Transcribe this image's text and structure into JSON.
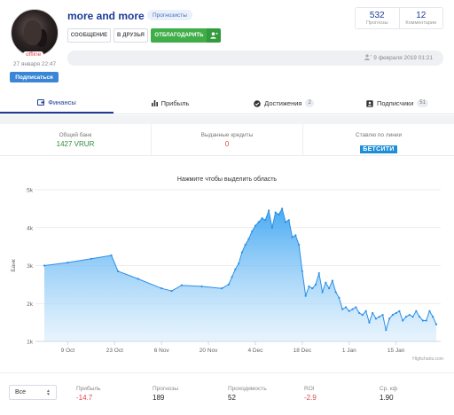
{
  "profile": {
    "username": "more and more",
    "role": "Прогнозисты",
    "status": "offline",
    "joined": "27 января 22:47",
    "subscribe_label": "Подписаться"
  },
  "actions": {
    "message": "СООБЩЕНИЕ",
    "friends": "В ДРУЗЬЯ",
    "thank": "ОТБЛАГОДАРИТЬ",
    "thank_icon": "add-user-icon"
  },
  "stats": [
    {
      "value": "532",
      "label": "Прогнозы"
    },
    {
      "value": "12",
      "label": "Комментарии"
    }
  ],
  "activity": {
    "date": "9 февраля 2019 01:21"
  },
  "tabs": [
    {
      "label": "Финансы",
      "icon": "wallet-icon",
      "count": ""
    },
    {
      "label": "Прибыль",
      "icon": "bar-chart-icon",
      "count": ""
    },
    {
      "label": "Достижения",
      "icon": "check-circle-icon",
      "count": "2"
    },
    {
      "label": "Подписчики",
      "icon": "user-card-icon",
      "count": "51"
    }
  ],
  "summary": [
    {
      "label": "Общий банк",
      "value": "1427 VRUR",
      "color": "#2e8b3a"
    },
    {
      "label": "Выданные кредиты",
      "value": "0",
      "color": "#e0474c"
    },
    {
      "label": "Ставлю по линии",
      "value": "БЕТСИТИ",
      "color": "#1e8ed8"
    }
  ],
  "chart_data": {
    "type": "area",
    "title": "Нажмите чтобы выделить область",
    "ylabel": "Банк",
    "credits": "Highcharts.com",
    "ylim": [
      1000,
      5000
    ],
    "y_ticks": [
      "1k",
      "2k",
      "3k",
      "4k",
      "5k"
    ],
    "x_ticks": [
      "9 Oct",
      "23 Oct",
      "6 Nov",
      "20 Nov",
      "4 Dec",
      "18 Dec",
      "1 Jan",
      "15 Jan"
    ],
    "series": [
      {
        "x": [
          "2018-10-02",
          "2018-10-09",
          "2018-10-16",
          "2018-10-22",
          "2018-10-24",
          "2018-10-30",
          "2018-11-06",
          "2018-11-09",
          "2018-11-12",
          "2018-11-18",
          "2018-11-24",
          "2018-11-26",
          "2018-11-27",
          "2018-11-28",
          "2018-11-29",
          "2018-11-30",
          "2018-12-01",
          "2018-12-02",
          "2018-12-03",
          "2018-12-04",
          "2018-12-05",
          "2018-12-06",
          "2018-12-07",
          "2018-12-08",
          "2018-12-09",
          "2018-12-10",
          "2018-12-11",
          "2018-12-12",
          "2018-12-13",
          "2018-12-14",
          "2018-12-15",
          "2018-12-16",
          "2018-12-17",
          "2018-12-18",
          "2018-12-19",
          "2018-12-20",
          "2018-12-21",
          "2018-12-22",
          "2018-12-23",
          "2018-12-24",
          "2018-12-25",
          "2018-12-26",
          "2018-12-27",
          "2018-12-28",
          "2018-12-29",
          "2018-12-30",
          "2018-12-31",
          "2019-01-01",
          "2019-01-02",
          "2019-01-03",
          "2019-01-04",
          "2019-01-05",
          "2019-01-06",
          "2019-01-07",
          "2019-01-08",
          "2019-01-09",
          "2019-01-10",
          "2019-01-11",
          "2019-01-12",
          "2019-01-13",
          "2019-01-14",
          "2019-01-15",
          "2019-01-16",
          "2019-01-17",
          "2019-01-18",
          "2019-01-19",
          "2019-01-20",
          "2019-01-21",
          "2019-01-22",
          "2019-01-23",
          "2019-01-24",
          "2019-01-25",
          "2019-01-26",
          "2019-01-27"
        ],
        "values": [
          3000,
          3080,
          3180,
          3270,
          2850,
          2650,
          2400,
          2330,
          2480,
          2450,
          2400,
          2500,
          2700,
          2900,
          3050,
          3350,
          3550,
          3700,
          3900,
          4050,
          4150,
          4250,
          4200,
          4450,
          4000,
          4400,
          4350,
          4500,
          4150,
          4200,
          3750,
          3800,
          3550,
          2850,
          2200,
          2450,
          2400,
          2500,
          2800,
          2300,
          2550,
          2400,
          2600,
          2300,
          2150,
          1850,
          1900,
          1800,
          1850,
          1900,
          1750,
          1700,
          1800,
          1500,
          1750,
          1600,
          1650,
          1700,
          1300,
          1600,
          1700,
          1750,
          1800,
          1550,
          1650,
          1700,
          1650,
          1800,
          1650,
          1550,
          1550,
          1800,
          1650,
          1450
        ]
      }
    ]
  },
  "footer": {
    "period_select": "Все",
    "stats": [
      {
        "label": "Прибыль",
        "value": "-14.7",
        "color": "#e0474c"
      },
      {
        "label": "Прогнозы",
        "value": "189",
        "color": "#222"
      },
      {
        "label": "Проходимость",
        "value": "52",
        "color": "#222"
      },
      {
        "label": "ROI",
        "value": "-2.9",
        "color": "#e0474c"
      },
      {
        "label": "Ср. кф",
        "value": "1.90",
        "color": "#222"
      }
    ]
  }
}
